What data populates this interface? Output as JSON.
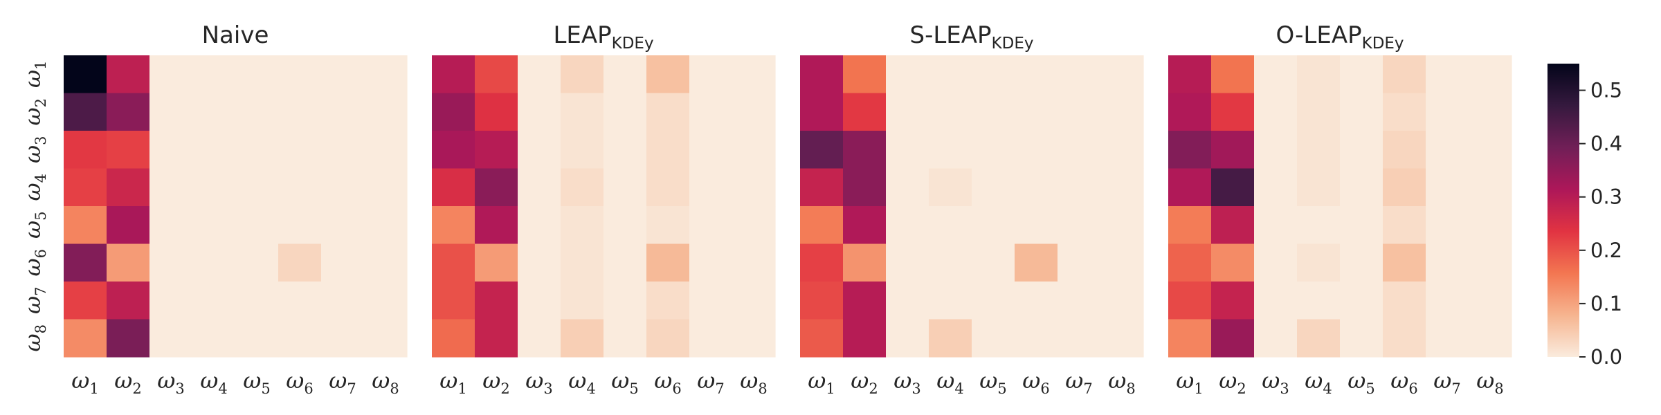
{
  "chart_data": {
    "type": "heatmap",
    "row_labels": [
      {
        "base": "ω",
        "sub": "1"
      },
      {
        "base": "ω",
        "sub": "2"
      },
      {
        "base": "ω",
        "sub": "3"
      },
      {
        "base": "ω",
        "sub": "4"
      },
      {
        "base": "ω",
        "sub": "5"
      },
      {
        "base": "ω",
        "sub": "6"
      },
      {
        "base": "ω",
        "sub": "7"
      },
      {
        "base": "ω",
        "sub": "8"
      }
    ],
    "col_labels": [
      {
        "base": "ω",
        "sub": "1"
      },
      {
        "base": "ω",
        "sub": "2"
      },
      {
        "base": "ω",
        "sub": "3"
      },
      {
        "base": "ω",
        "sub": "4"
      },
      {
        "base": "ω",
        "sub": "5"
      },
      {
        "base": "ω",
        "sub": "6"
      },
      {
        "base": "ω",
        "sub": "7"
      },
      {
        "base": "ω",
        "sub": "8"
      }
    ],
    "colorbar": {
      "vmin": 0.0,
      "vmax": 0.55,
      "ticks": [
        0.0,
        0.1,
        0.2,
        0.3,
        0.4,
        0.5
      ],
      "tick_labels": [
        "0.0",
        "0.1",
        "0.2",
        "0.3",
        "0.4",
        "0.5"
      ],
      "colormap": "rocket_r",
      "color_stops": [
        "#faebdd",
        "#f6b48f",
        "#f37651",
        "#e13342",
        "#ad1759",
        "#701f57",
        "#35193e",
        "#03051a"
      ]
    },
    "panels": [
      {
        "title": "Naive",
        "title_sub": "",
        "values": [
          [
            0.55,
            0.29,
            0.0,
            0.0,
            0.0,
            0.0,
            0.0,
            0.0
          ],
          [
            0.44,
            0.36,
            0.0,
            0.0,
            0.0,
            0.0,
            0.0,
            0.0
          ],
          [
            0.23,
            0.22,
            0.0,
            0.0,
            0.0,
            0.0,
            0.0,
            0.0
          ],
          [
            0.22,
            0.27,
            0.0,
            0.0,
            0.0,
            0.0,
            0.0,
            0.0
          ],
          [
            0.14,
            0.32,
            0.0,
            0.0,
            0.0,
            0.0,
            0.0,
            0.0
          ],
          [
            0.37,
            0.11,
            0.0,
            0.0,
            0.0,
            0.03,
            0.0,
            0.0
          ],
          [
            0.22,
            0.29,
            0.0,
            0.0,
            0.0,
            0.0,
            0.0,
            0.0
          ],
          [
            0.13,
            0.38,
            0.0,
            0.0,
            0.0,
            0.0,
            0.0,
            0.0
          ]
        ]
      },
      {
        "title": "LEAP",
        "title_sub": "KDEy",
        "values": [
          [
            0.3,
            0.21,
            0.0,
            0.03,
            0.0,
            0.06,
            0.0,
            0.0
          ],
          [
            0.34,
            0.24,
            0.0,
            0.01,
            0.0,
            0.02,
            0.0,
            0.0
          ],
          [
            0.32,
            0.3,
            0.0,
            0.01,
            0.0,
            0.02,
            0.0,
            0.0
          ],
          [
            0.25,
            0.36,
            0.0,
            0.02,
            0.0,
            0.02,
            0.0,
            0.0
          ],
          [
            0.14,
            0.31,
            0.0,
            0.01,
            0.0,
            0.01,
            0.0,
            0.0
          ],
          [
            0.2,
            0.11,
            0.0,
            0.01,
            0.0,
            0.07,
            0.0,
            0.0
          ],
          [
            0.2,
            0.28,
            0.0,
            0.01,
            0.0,
            0.02,
            0.0,
            0.0
          ],
          [
            0.17,
            0.28,
            0.0,
            0.04,
            0.0,
            0.03,
            0.0,
            0.0
          ]
        ]
      },
      {
        "title": "S-LEAP",
        "title_sub": "KDEy",
        "values": [
          [
            0.31,
            0.16,
            0.0,
            0.0,
            0.0,
            0.0,
            0.0,
            0.0
          ],
          [
            0.31,
            0.23,
            0.0,
            0.0,
            0.0,
            0.0,
            0.0,
            0.0
          ],
          [
            0.41,
            0.36,
            0.0,
            0.0,
            0.0,
            0.0,
            0.0,
            0.0
          ],
          [
            0.28,
            0.36,
            0.0,
            0.01,
            0.0,
            0.0,
            0.0,
            0.0
          ],
          [
            0.15,
            0.31,
            0.0,
            0.0,
            0.0,
            0.0,
            0.0,
            0.0
          ],
          [
            0.22,
            0.12,
            0.0,
            0.0,
            0.0,
            0.07,
            0.0,
            0.0
          ],
          [
            0.21,
            0.3,
            0.0,
            0.0,
            0.0,
            0.0,
            0.0,
            0.0
          ],
          [
            0.19,
            0.3,
            0.0,
            0.04,
            0.0,
            0.0,
            0.0,
            0.0
          ]
        ]
      },
      {
        "title": "O-LEAP",
        "title_sub": "KDEy",
        "values": [
          [
            0.3,
            0.16,
            0.0,
            0.01,
            0.0,
            0.03,
            0.0,
            0.0
          ],
          [
            0.31,
            0.23,
            0.0,
            0.01,
            0.0,
            0.02,
            0.0,
            0.0
          ],
          [
            0.37,
            0.33,
            0.0,
            0.01,
            0.0,
            0.03,
            0.0,
            0.0
          ],
          [
            0.31,
            0.45,
            0.0,
            0.01,
            0.0,
            0.04,
            0.0,
            0.0
          ],
          [
            0.15,
            0.29,
            0.0,
            0.0,
            0.0,
            0.02,
            0.0,
            0.0
          ],
          [
            0.18,
            0.13,
            0.0,
            0.01,
            0.0,
            0.06,
            0.0,
            0.0
          ],
          [
            0.21,
            0.28,
            0.0,
            0.0,
            0.0,
            0.02,
            0.0,
            0.0
          ],
          [
            0.14,
            0.34,
            0.0,
            0.03,
            0.0,
            0.02,
            0.0,
            0.0
          ]
        ]
      }
    ]
  }
}
